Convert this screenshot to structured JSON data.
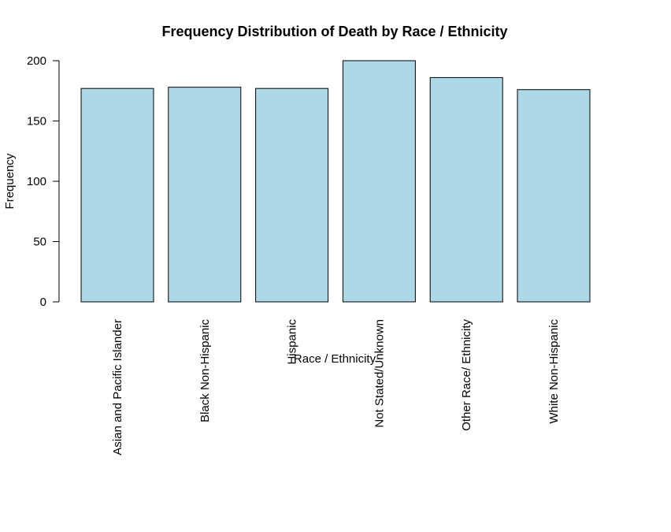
{
  "chart_data": {
    "type": "bar",
    "title": "Frequency Distribution of Death by Race / Ethnicity",
    "xlabel": "Race / Ethnicity",
    "ylabel": "Frequency",
    "categories": [
      "Asian and Pacific Islander",
      "Black Non-Hispanic",
      "Hispanic",
      "Not Stated/Unknown",
      "Other Race/ Ethnicity",
      "White Non-Hispanic"
    ],
    "values": [
      177,
      178,
      177,
      200,
      186,
      176
    ],
    "ylim": [
      0,
      200
    ],
    "yticks": [
      "0",
      "50",
      "100",
      "150",
      "200"
    ],
    "bar_color": "#ADD8E6",
    "bar_border_color": "#000000",
    "grid": false,
    "legend": "none"
  }
}
